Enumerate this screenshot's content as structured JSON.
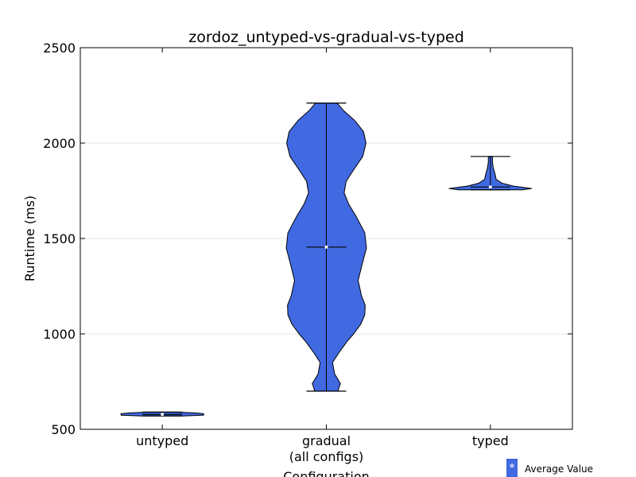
{
  "chart_data": {
    "type": "violin",
    "title": "zordoz_untyped-vs-gradual-vs-typed",
    "xlabel": "Configuration",
    "ylabel": "Runtime (ms)",
    "ylim": [
      500,
      2500
    ],
    "yticks": [
      500,
      1000,
      1500,
      2000,
      2500
    ],
    "grid": "horizontal",
    "categories": [
      {
        "label": "untyped",
        "sublabel": ""
      },
      {
        "label": "gradual",
        "sublabel": "(all configs)"
      },
      {
        "label": "typed",
        "sublabel": ""
      }
    ],
    "violins": [
      {
        "min": 570,
        "max": 590,
        "mean": 578,
        "profile": [
          [
            570,
            0.5
          ],
          [
            574,
            1.0
          ],
          [
            578,
            1.0
          ],
          [
            582,
            1.0
          ],
          [
            586,
            0.8
          ],
          [
            590,
            0.35
          ]
        ]
      },
      {
        "min": 700,
        "max": 2210,
        "mean": 1455,
        "profile": [
          [
            700,
            0.28
          ],
          [
            740,
            0.34
          ],
          [
            790,
            0.2
          ],
          [
            850,
            0.15
          ],
          [
            900,
            0.3
          ],
          [
            960,
            0.5
          ],
          [
            1000,
            0.66
          ],
          [
            1050,
            0.83
          ],
          [
            1100,
            0.93
          ],
          [
            1150,
            0.94
          ],
          [
            1200,
            0.85
          ],
          [
            1280,
            0.77
          ],
          [
            1360,
            0.86
          ],
          [
            1450,
            0.97
          ],
          [
            1530,
            0.93
          ],
          [
            1620,
            0.71
          ],
          [
            1680,
            0.54
          ],
          [
            1740,
            0.43
          ],
          [
            1800,
            0.48
          ],
          [
            1860,
            0.66
          ],
          [
            1930,
            0.88
          ],
          [
            2000,
            0.96
          ],
          [
            2060,
            0.9
          ],
          [
            2120,
            0.68
          ],
          [
            2170,
            0.42
          ],
          [
            2210,
            0.26
          ]
        ]
      },
      {
        "min": 1755,
        "max": 1930,
        "mean": 1770,
        "profile": [
          [
            1755,
            0.78
          ],
          [
            1762,
            1.0
          ],
          [
            1775,
            0.55
          ],
          [
            1790,
            0.28
          ],
          [
            1810,
            0.14
          ],
          [
            1840,
            0.11
          ],
          [
            1870,
            0.07
          ],
          [
            1900,
            0.05
          ],
          [
            1930,
            0.05
          ]
        ]
      }
    ],
    "fill_color": "#4169e1",
    "legend": {
      "marker": "*",
      "label": "Average Value",
      "placement": "bottom-right"
    }
  }
}
